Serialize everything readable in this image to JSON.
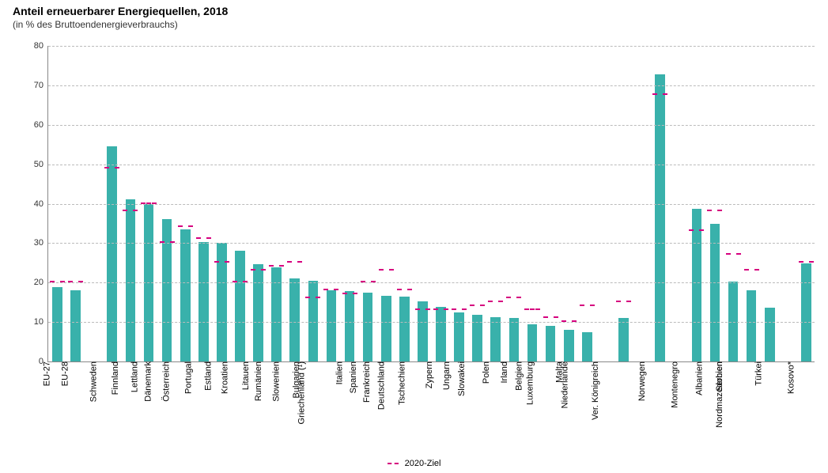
{
  "chart": {
    "type": "bar",
    "title": "Anteil erneuerbarer Energiequellen, 2018",
    "subtitle": "(in % des Bruttoendenergieverbrauchs)",
    "title_fontsize": 14,
    "subtitle_fontsize": 12,
    "label_fontsize": 11,
    "background_color": "#ffffff",
    "grid_color": "#bbbbbb",
    "axis_color": "#888888",
    "bar_color": "#39b1ab",
    "target_color": "#d6007f",
    "ylim": [
      0,
      80
    ],
    "ytick_step": 10,
    "yticks": [
      0,
      10,
      20,
      30,
      40,
      50,
      60,
      70,
      80
    ],
    "bar_width_ratio": 0.55,
    "groups": [
      {
        "labels": [
          "EU-27",
          "EU-28"
        ],
        "values": [
          18.9,
          18.0
        ],
        "targets": [
          20,
          20
        ]
      },
      {
        "labels": [
          "Schweden",
          "Finnland",
          "Lettland",
          "Dänemark",
          "Österreich",
          "Portugal",
          "Estland",
          "Kroatien",
          "Litauen",
          "Rumänien",
          "Slowenien",
          "Bulgarien",
          "Griechenland (¹)",
          "Italien",
          "Spanien",
          "Frankreich",
          "Deutschland",
          "Tschechien",
          "Zypern",
          "Ungarn",
          "Slowakei",
          "Polen",
          "Irland",
          "Belgien",
          "Luxemburg",
          "Malta",
          "Niederlande"
        ],
        "values": [
          54.6,
          41.2,
          40.0,
          36.1,
          33.4,
          30.3,
          30.0,
          28.0,
          24.6,
          23.9,
          21.1,
          20.5,
          18.0,
          17.8,
          17.4,
          16.6,
          16.5,
          15.2,
          13.9,
          12.5,
          11.9,
          11.3,
          11.1,
          9.4,
          9.1,
          8.0,
          7.4
        ],
        "targets": [
          49,
          38,
          40,
          30,
          34,
          31,
          25,
          20,
          23,
          24,
          25,
          16,
          18,
          17,
          20,
          23,
          18,
          13,
          13,
          13,
          14,
          15,
          16,
          13,
          11,
          10,
          14
        ]
      },
      {
        "labels": [
          "Ver. Königreich"
        ],
        "values": [
          11.0
        ],
        "targets": [
          15
        ]
      },
      {
        "labels": [
          "Norwegen"
        ],
        "values": [
          72.8
        ],
        "targets": [
          67.5
        ]
      },
      {
        "labels": [
          "Montenegro",
          "Albanien",
          "Serbien",
          "Nordmazedonien",
          "Türkei"
        ],
        "values": [
          38.8,
          34.9,
          20.3,
          18.1,
          13.7
        ],
        "targets": [
          33,
          38,
          27,
          23,
          null
        ]
      },
      {
        "labels": [
          "Kosovo*"
        ],
        "values": [
          24.9
        ],
        "targets": [
          25
        ]
      }
    ],
    "group_gap_slots": 1,
    "legend_label": "2020-Ziel"
  }
}
